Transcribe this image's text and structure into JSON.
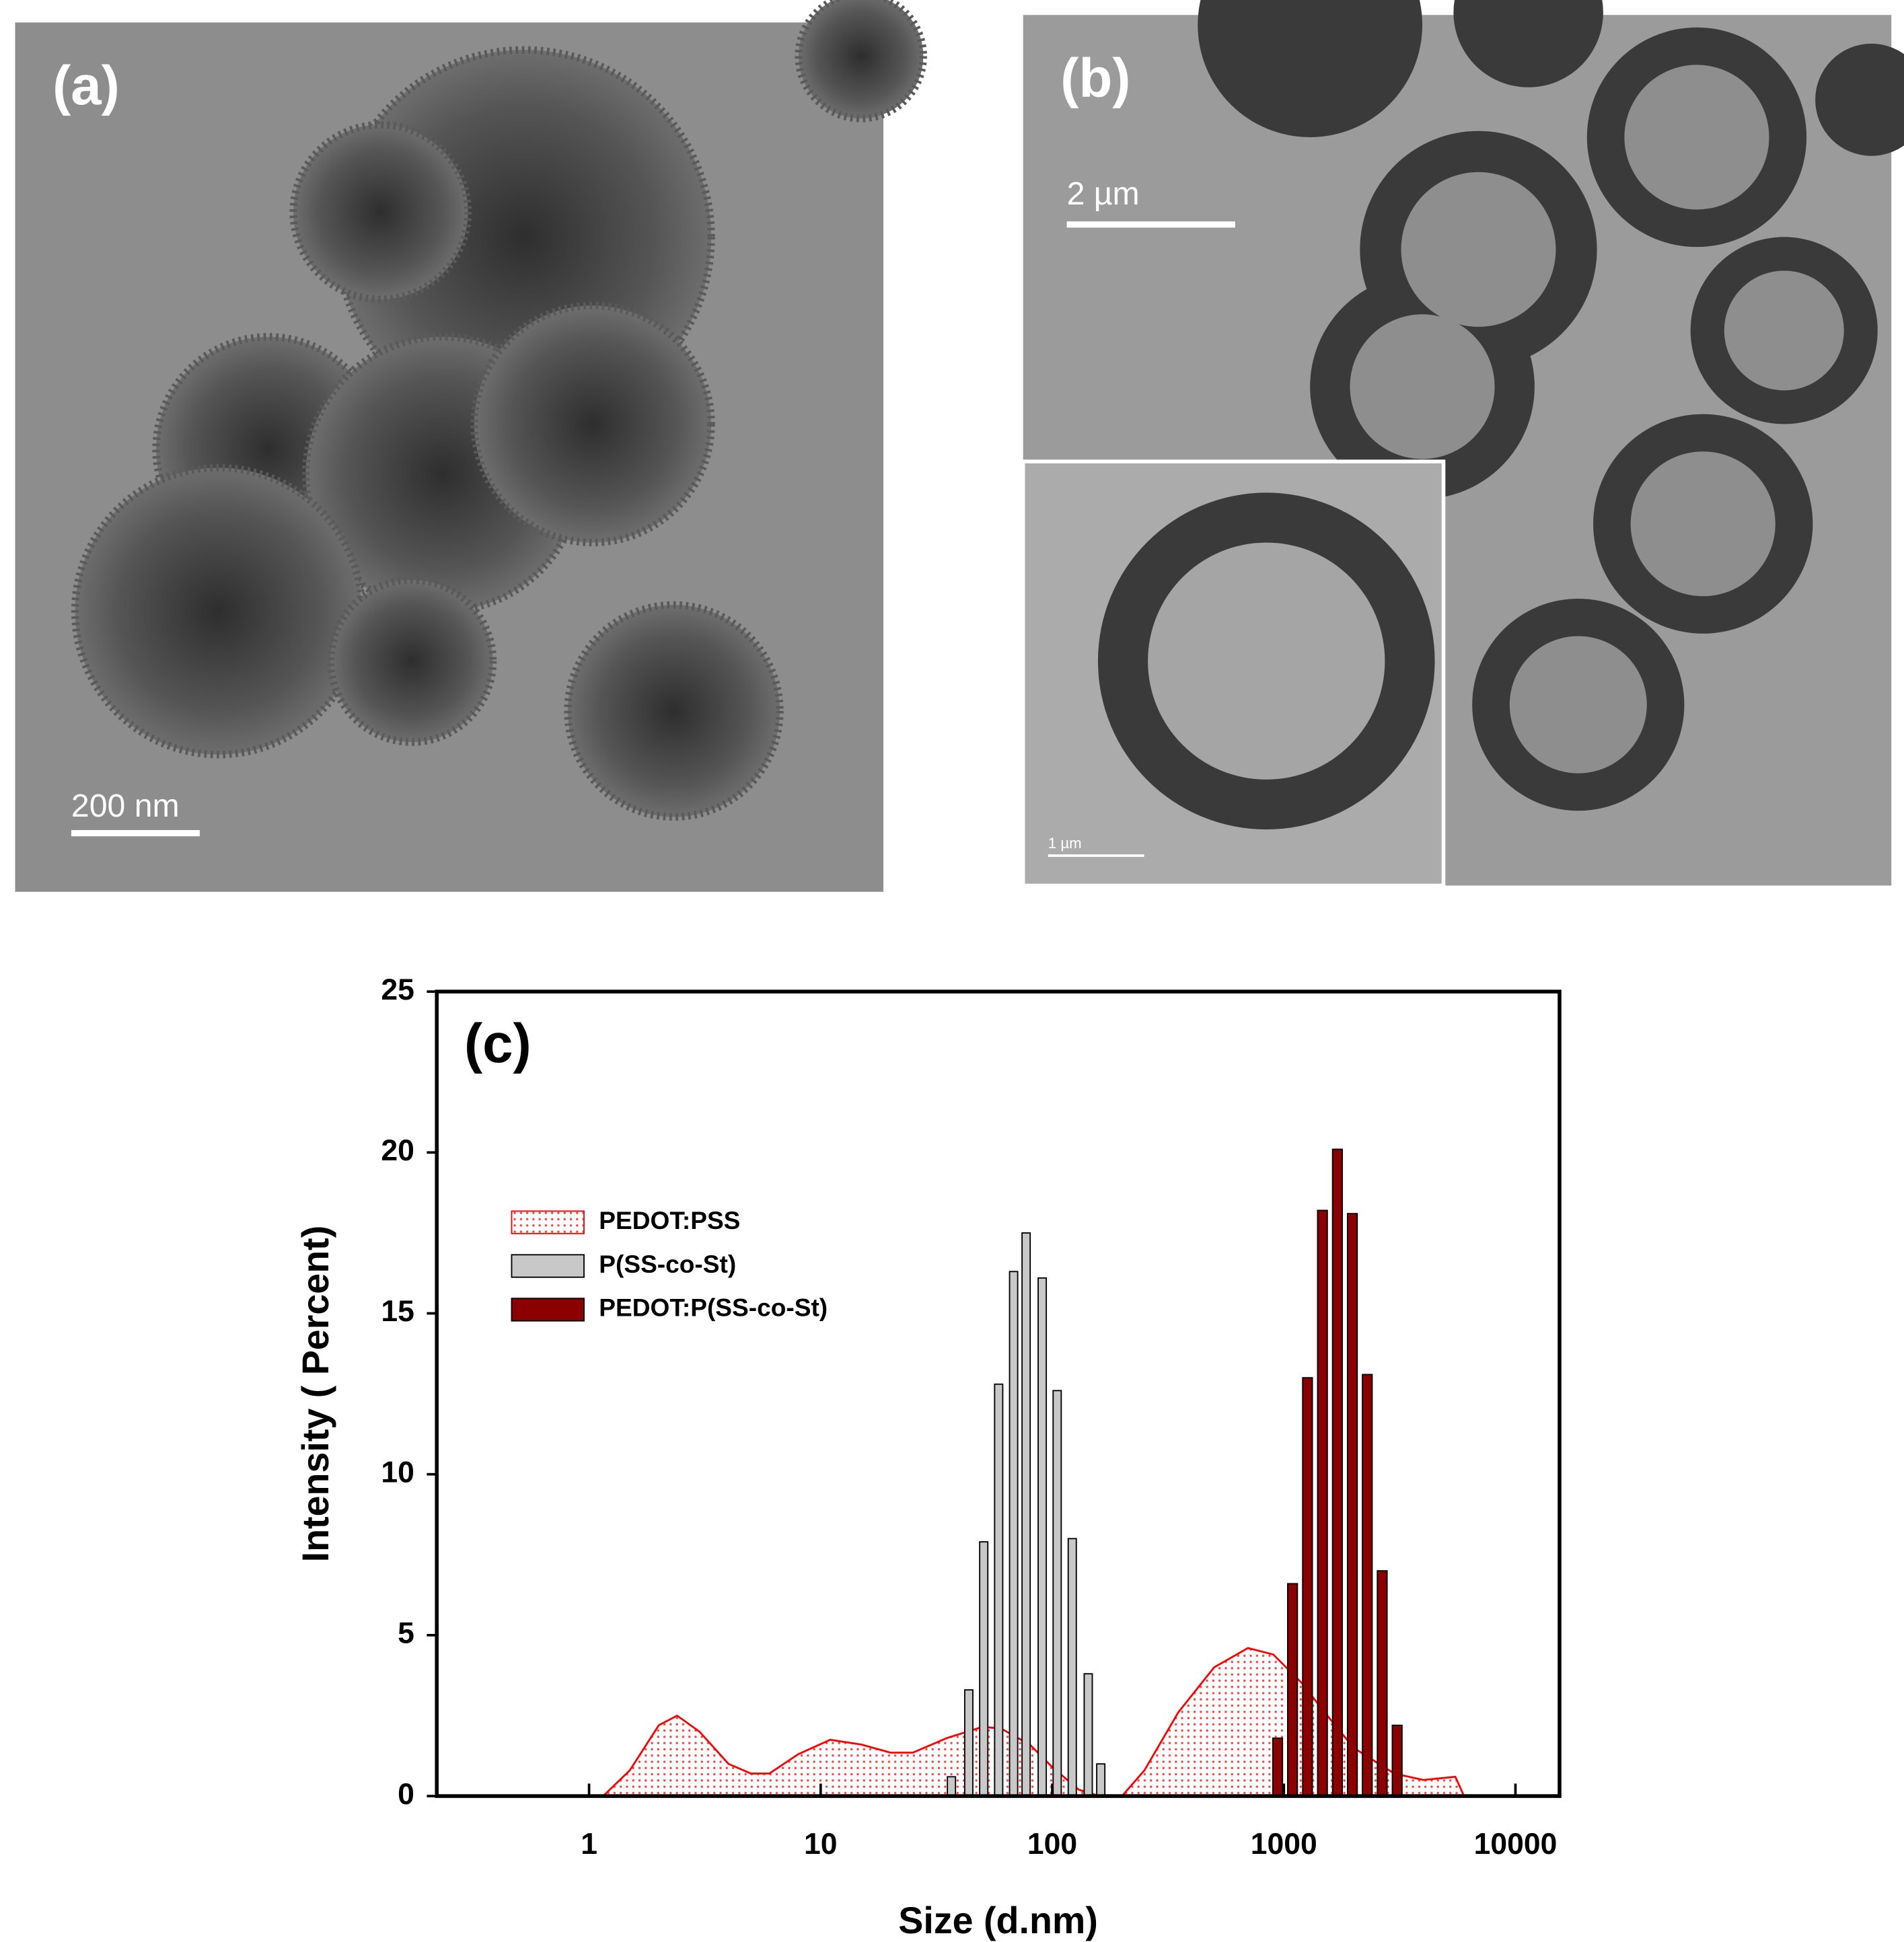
{
  "panels": [
    {
      "label": "(a)",
      "scale_bar": "200 nm"
    },
    {
      "label": "(b)",
      "scale_bar": "2 µm",
      "inset_scale_bar": "1 µm"
    }
  ],
  "chart_data": {
    "type": "bar",
    "title": "(c)",
    "x_label": "Size (d.nm)",
    "y_label": "Intensity ( Percent)",
    "xscale": "log",
    "xlim": [
      0.22,
      15500
    ],
    "ylim": [
      0,
      25
    ],
    "xticks": [
      1,
      10,
      100,
      1000,
      10000
    ],
    "yticks": [
      0,
      5,
      10,
      15,
      20,
      25
    ],
    "legend": "upper left",
    "series": [
      {
        "name": "PEDOT:PSS",
        "style": "area",
        "color": "#ff0000",
        "x": [
          1.15,
          1.5,
          2,
          2.4,
          3,
          4,
          5,
          6,
          8,
          11,
          15,
          20,
          25,
          35,
          50,
          60,
          80,
          100,
          130,
          160,
          200,
          250,
          350,
          500,
          700,
          900,
          1200,
          1500,
          2000,
          3000,
          4000,
          5500,
          6000
        ],
        "values": [
          0,
          0.8,
          2.2,
          2.5,
          2.0,
          1.0,
          0.7,
          0.7,
          1.3,
          1.75,
          1.6,
          1.35,
          1.35,
          1.8,
          2.15,
          2.1,
          1.6,
          0.9,
          0.2,
          0,
          0,
          0.8,
          2.6,
          4.0,
          4.6,
          4.4,
          3.5,
          2.6,
          1.5,
          0.7,
          0.5,
          0.6,
          0
        ]
      },
      {
        "name": "P(SS-co-St)",
        "style": "bar",
        "color": "#c8c8c8",
        "x": [
          36.7,
          43.6,
          50.6,
          58.7,
          68.1,
          77.1,
          90.5,
          105,
          122,
          143,
          162
        ],
        "values": [
          0.6,
          3.3,
          7.9,
          12.8,
          16.3,
          17.5,
          16.1,
          12.6,
          8.0,
          3.8,
          1.0
        ]
      },
      {
        "name": "PEDOT:P(SS-co-St)",
        "style": "bar",
        "color": "#8b0000",
        "x": [
          940,
          1090,
          1265,
          1468,
          1703,
          1976,
          2292,
          2659,
          3085
        ],
        "values": [
          1.8,
          6.6,
          13.0,
          18.2,
          20.1,
          18.1,
          13.1,
          7.0,
          2.2
        ]
      }
    ]
  }
}
